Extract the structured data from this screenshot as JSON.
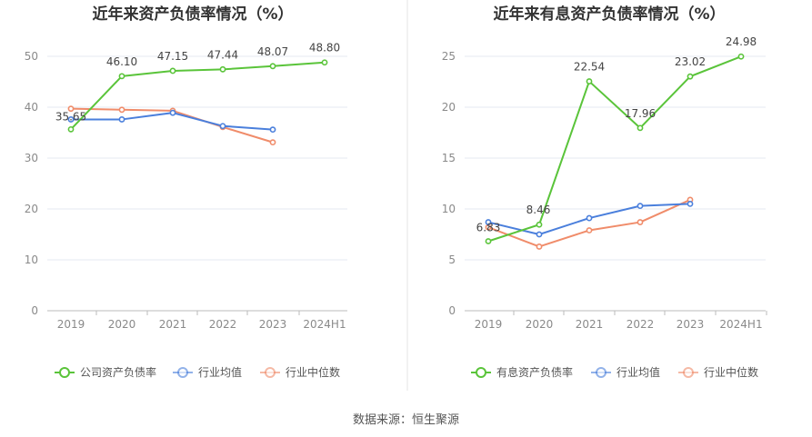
{
  "source_text": "数据来源：恒生聚源",
  "colors": {
    "company": "#5ac43a",
    "avg": "#4a7fdc",
    "median": "#f08c6a",
    "grid": "#e6e9f0",
    "axis": "#bbbbbb",
    "divider": "#e6e6e6"
  },
  "chart_data": [
    {
      "type": "line",
      "title": "近年来资产负债率情况（%）",
      "categories": [
        "2019",
        "2020",
        "2021",
        "2022",
        "2023",
        "2024H1"
      ],
      "ylim": [
        0,
        55
      ],
      "yticks": [
        0,
        10,
        20,
        30,
        40,
        50
      ],
      "grid": true,
      "legend_position": "bottom",
      "series": [
        {
          "name": "公司资产负债率",
          "key": "company",
          "values": [
            35.65,
            46.1,
            47.15,
            47.44,
            48.07,
            48.8
          ],
          "labels": [
            "35.65",
            "46.10",
            "47.15",
            "47.44",
            "48.07",
            "48.80"
          ]
        },
        {
          "name": "行业均值",
          "key": "avg",
          "values": [
            37.6,
            37.6,
            38.9,
            36.3,
            35.6,
            null
          ]
        },
        {
          "name": "行业中位数",
          "key": "median",
          "values": [
            39.7,
            39.5,
            39.3,
            36.1,
            33.1,
            null
          ]
        }
      ]
    },
    {
      "type": "line",
      "title": "近年来有息资产负债率情况（%）",
      "categories": [
        "2019",
        "2020",
        "2021",
        "2022",
        "2023",
        "2024H1"
      ],
      "ylim": [
        0,
        27.5
      ],
      "yticks": [
        0,
        5,
        10,
        15,
        20,
        25
      ],
      "grid": true,
      "legend_position": "bottom",
      "series": [
        {
          "name": "有息资产负债率",
          "key": "company",
          "values": [
            6.83,
            8.46,
            22.54,
            17.96,
            23.02,
            24.98
          ],
          "labels": [
            "6.83",
            "8.46",
            "22.54",
            "17.96",
            "23.02",
            "24.98"
          ]
        },
        {
          "name": "行业均值",
          "key": "avg",
          "values": [
            8.7,
            7.5,
            9.1,
            10.3,
            10.5,
            null
          ]
        },
        {
          "name": "行业中位数",
          "key": "median",
          "values": [
            8.2,
            6.3,
            7.9,
            8.7,
            10.9,
            null
          ]
        }
      ]
    }
  ]
}
